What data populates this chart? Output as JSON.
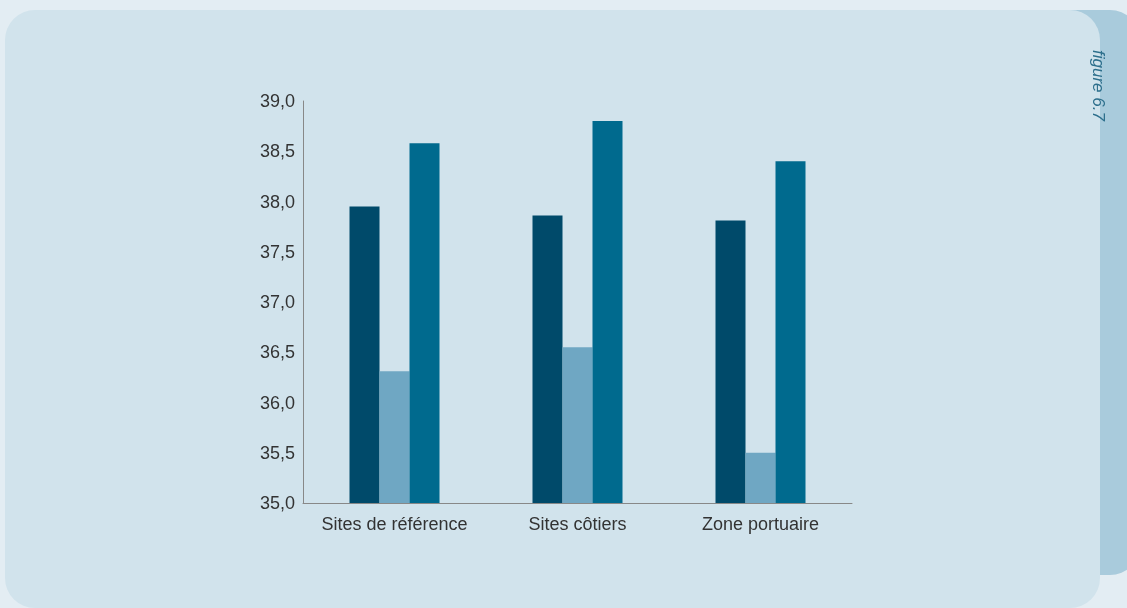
{
  "chart_data": {
    "type": "bar",
    "categories": [
      "Sites de référence",
      "Sites côtiers",
      "Zone portuaire"
    ],
    "series": [
      {
        "color": "#004a6a",
        "values": [
          37.95,
          37.86,
          37.81
        ]
      },
      {
        "color": "#6fa7c3",
        "values": [
          36.31,
          36.55,
          35.5
        ]
      },
      {
        "color": "#006a8e",
        "values": [
          38.58,
          38.8,
          38.4
        ]
      }
    ],
    "ylim": [
      35,
      39
    ],
    "yticks": [
      {
        "value": 35,
        "label": "35,0"
      },
      {
        "value": 35.5,
        "label": "35,5"
      },
      {
        "value": 36,
        "label": "36,0"
      },
      {
        "value": 36.5,
        "label": "36,5"
      },
      {
        "value": 37,
        "label": "37,0"
      },
      {
        "value": 37.5,
        "label": "37,5"
      },
      {
        "value": 38,
        "label": "38,0"
      },
      {
        "value": 38.5,
        "label": "38,5"
      },
      {
        "value": 39,
        "label": "39,0"
      }
    ],
    "grid": false,
    "annotations": [
      "figure 6.7"
    ]
  }
}
